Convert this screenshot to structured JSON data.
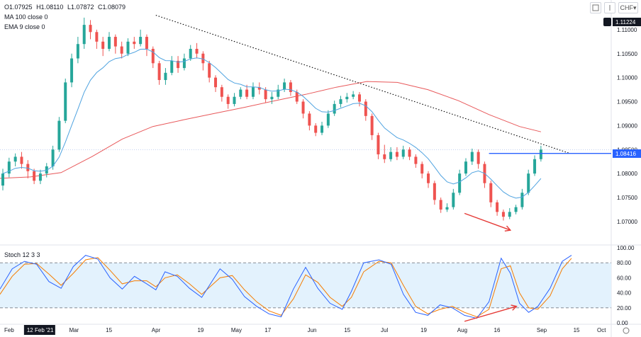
{
  "ohlc_legend": {
    "open": "O1.07925",
    "high": "H1.08110",
    "low": "L1.07872",
    "close": "C1.08079"
  },
  "indicators": {
    "ma": "MA 100 close 0",
    "ema": "EMA 9 close 0",
    "stoch": "Stoch 12 3 3"
  },
  "toolbar": {
    "currency": "CHF▾",
    "icon_a": "eye-icon",
    "icon_b": "lock-icon"
  },
  "colors": {
    "up": "#26a69a",
    "down": "#ef5350",
    "ma": "#e8585a",
    "ema": "#4fa3e0",
    "trend": "#000000",
    "hline": "#2962ff",
    "stoch_k": "#2962ff",
    "stoch_d": "#f57c00",
    "band": "#e3f2fd",
    "arrow": "#e53935",
    "price_tag": "#2962ff",
    "top_tag": "#131722"
  },
  "chart_data": {
    "type": "candlestick",
    "y_ticks": [
      "1.11000",
      "1.10500",
      "1.10000",
      "1.09500",
      "1.09000",
      "1.08500",
      "1.08000",
      "1.07500",
      "1.07000"
    ],
    "ylim": [
      1.066,
      1.115
    ],
    "x_ticks": [
      "Feb",
      "12 Feb '21",
      "Mar",
      "15",
      "Apr",
      "19",
      "May",
      "17",
      "Jun",
      "15",
      "Jul",
      "19",
      "Aug",
      "16",
      "Sep",
      "15",
      "Oct"
    ],
    "x_tick_fracs": [
      0,
      0.03,
      0.12,
      0.18,
      0.255,
      0.33,
      0.385,
      0.44,
      0.51,
      0.57,
      0.63,
      0.695,
      0.755,
      0.815,
      0.885,
      0.945,
      1.0
    ],
    "highlighted_x_tick": "12 Feb '21",
    "price_labels": {
      "current": "1.08416",
      "top": "1.11224",
      "faint": "1.08500"
    },
    "current_price": 1.08416,
    "top_price": 1.11224,
    "horizontal_line": {
      "start_frac": 0.8,
      "value": 1.0842
    },
    "trendline": {
      "start": [
        0.255,
        1.113
      ],
      "end": [
        0.93,
        1.0843
      ]
    },
    "ma100": [
      [
        0,
        1.079
      ],
      [
        0.05,
        1.0793
      ],
      [
        0.1,
        1.0802
      ],
      [
        0.15,
        1.0835
      ],
      [
        0.2,
        1.0872
      ],
      [
        0.25,
        1.0898
      ],
      [
        0.3,
        1.0912
      ],
      [
        0.35,
        1.0925
      ],
      [
        0.4,
        1.0938
      ],
      [
        0.45,
        1.0952
      ],
      [
        0.5,
        1.0965
      ],
      [
        0.55,
        1.098
      ],
      [
        0.6,
        1.0992
      ],
      [
        0.65,
        1.099
      ],
      [
        0.7,
        1.0975
      ],
      [
        0.75,
        1.0952
      ],
      [
        0.8,
        1.0923
      ],
      [
        0.85,
        1.0898
      ],
      [
        0.885,
        1.0887
      ]
    ],
    "candles": [
      [
        1.0775,
        1.08,
        1.0765,
        1.081
      ],
      [
        1.08,
        1.0825,
        1.0792,
        1.0833
      ],
      [
        1.0825,
        1.0835,
        1.0815,
        1.0842
      ],
      [
        1.0835,
        1.082,
        1.081,
        1.0845
      ],
      [
        1.082,
        1.0805,
        1.079,
        1.0828
      ],
      [
        1.0805,
        1.0785,
        1.0778,
        1.081
      ],
      [
        1.0785,
        1.08,
        1.0778,
        1.0808
      ],
      [
        1.08,
        1.0815,
        1.0792,
        1.0822
      ],
      [
        1.0815,
        1.085,
        1.0808,
        1.0858
      ],
      [
        1.085,
        1.091,
        1.0845,
        1.0918
      ],
      [
        1.091,
        1.099,
        1.0905,
        1.0998
      ],
      [
        1.099,
        1.104,
        1.098,
        1.105
      ],
      [
        1.104,
        1.107,
        1.103,
        1.1085
      ],
      [
        1.107,
        1.111,
        1.106,
        1.1125
      ],
      [
        1.111,
        1.1095,
        1.108,
        1.112
      ],
      [
        1.1095,
        1.1075,
        1.106,
        1.11
      ],
      [
        1.1075,
        1.106,
        1.1045,
        1.1085
      ],
      [
        1.106,
        1.1085,
        1.1055,
        1.1095
      ],
      [
        1.1085,
        1.1065,
        1.105,
        1.109
      ],
      [
        1.1065,
        1.105,
        1.104,
        1.1075
      ],
      [
        1.105,
        1.1075,
        1.1045,
        1.1082
      ],
      [
        1.1075,
        1.107,
        1.106,
        1.1085
      ],
      [
        1.107,
        1.1085,
        1.1065,
        1.11
      ],
      [
        1.1085,
        1.106,
        1.1045,
        1.109
      ],
      [
        1.106,
        1.103,
        1.102,
        1.1065
      ],
      [
        1.103,
        1.0995,
        1.0985,
        1.1035
      ],
      [
        1.0995,
        1.101,
        1.0985,
        1.102
      ],
      [
        1.101,
        1.1035,
        1.1005,
        1.1045
      ],
      [
        1.1035,
        1.102,
        1.101,
        1.1045
      ],
      [
        1.102,
        1.104,
        1.1015,
        1.105
      ],
      [
        1.104,
        1.106,
        1.1035,
        1.1068
      ],
      [
        1.106,
        1.105,
        1.104,
        1.1072
      ],
      [
        1.105,
        1.103,
        1.1015,
        1.1055
      ],
      [
        1.103,
        1.1,
        1.099,
        1.1035
      ],
      [
        1.1,
        1.098,
        1.097,
        1.1005
      ],
      [
        1.098,
        1.096,
        1.095,
        1.0985
      ],
      [
        1.096,
        1.0945,
        1.0935,
        1.0965
      ],
      [
        1.0945,
        1.096,
        1.094,
        1.0968
      ],
      [
        1.096,
        1.0975,
        1.0955,
        1.098
      ],
      [
        1.0975,
        1.096,
        1.0955,
        1.0985
      ],
      [
        1.096,
        1.098,
        1.0955,
        1.099
      ],
      [
        1.098,
        1.0975,
        1.0965,
        1.099
      ],
      [
        1.0975,
        1.0955,
        1.0948,
        1.098
      ],
      [
        1.0955,
        1.096,
        1.0945,
        1.097
      ],
      [
        1.096,
        1.0975,
        1.0955,
        1.0985
      ],
      [
        1.0975,
        1.099,
        1.097,
        1.0998
      ],
      [
        1.099,
        1.097,
        1.0962,
        1.0995
      ],
      [
        1.097,
        1.095,
        1.0945,
        1.0975
      ],
      [
        1.095,
        1.0925,
        1.0915,
        1.0955
      ],
      [
        1.0925,
        1.09,
        1.089,
        1.093
      ],
      [
        1.09,
        1.0885,
        1.0878,
        1.0905
      ],
      [
        1.0885,
        1.09,
        1.088,
        1.0908
      ],
      [
        1.09,
        1.0925,
        1.0895,
        1.0932
      ],
      [
        1.0925,
        1.0945,
        1.092,
        1.0952
      ],
      [
        1.0945,
        1.0955,
        1.0938,
        1.0962
      ],
      [
        1.0955,
        1.096,
        1.0948,
        1.0968
      ],
      [
        1.096,
        1.0965,
        1.0955,
        1.0972
      ],
      [
        1.0965,
        1.095,
        1.094,
        1.097
      ],
      [
        1.095,
        1.092,
        1.091,
        1.0955
      ],
      [
        1.092,
        1.088,
        1.087,
        1.0925
      ],
      [
        1.088,
        1.084,
        1.083,
        1.0885
      ],
      [
        1.084,
        1.083,
        1.0822,
        1.086
      ],
      [
        1.083,
        1.0845,
        1.0825,
        1.0855
      ],
      [
        1.0845,
        1.0835,
        1.0828,
        1.0855
      ],
      [
        1.0835,
        1.085,
        1.083,
        1.0858
      ],
      [
        1.085,
        1.0835,
        1.0828,
        1.0855
      ],
      [
        1.0835,
        1.082,
        1.0812,
        1.084
      ],
      [
        1.082,
        1.08,
        1.079,
        1.0825
      ],
      [
        1.08,
        1.078,
        1.077,
        1.0805
      ],
      [
        1.078,
        1.0745,
        1.0735,
        1.0785
      ],
      [
        1.0745,
        1.0725,
        1.0718,
        1.075
      ],
      [
        1.0725,
        1.073,
        1.072,
        1.0738
      ],
      [
        1.073,
        1.076,
        1.0725,
        1.0768
      ],
      [
        1.076,
        1.08,
        1.0755,
        1.0808
      ],
      [
        1.08,
        1.0825,
        1.0795,
        1.0832
      ],
      [
        1.0825,
        1.0845,
        1.0818,
        1.0852
      ],
      [
        1.0845,
        1.082,
        1.081,
        1.085
      ],
      [
        1.082,
        1.078,
        1.077,
        1.0825
      ],
      [
        1.078,
        1.074,
        1.073,
        1.0785
      ],
      [
        1.074,
        1.072,
        1.0712,
        1.0745
      ],
      [
        1.072,
        1.071,
        1.0702,
        1.0725
      ],
      [
        1.071,
        1.072,
        1.0705,
        1.0728
      ],
      [
        1.072,
        1.073,
        1.0715,
        1.0735
      ],
      [
        1.073,
        1.076,
        1.0725,
        1.0768
      ],
      [
        1.076,
        1.08,
        1.0755,
        1.0808
      ],
      [
        1.08,
        1.083,
        1.0795,
        1.0838
      ],
      [
        1.083,
        1.085,
        1.0825,
        1.0858
      ]
    ],
    "stoch": {
      "yticks": [
        "100.00",
        "80.00",
        "60.00",
        "40.00",
        "20.00",
        "0.00"
      ],
      "ylim": [
        0,
        100
      ],
      "band": [
        20,
        80
      ],
      "k": [
        [
          0,
          45
        ],
        [
          0.02,
          72
        ],
        [
          0.04,
          82
        ],
        [
          0.06,
          78
        ],
        [
          0.08,
          55
        ],
        [
          0.1,
          46
        ],
        [
          0.12,
          75
        ],
        [
          0.14,
          90
        ],
        [
          0.16,
          85
        ],
        [
          0.18,
          60
        ],
        [
          0.2,
          45
        ],
        [
          0.22,
          62
        ],
        [
          0.24,
          52
        ],
        [
          0.255,
          44
        ],
        [
          0.27,
          68
        ],
        [
          0.29,
          62
        ],
        [
          0.31,
          46
        ],
        [
          0.33,
          34
        ],
        [
          0.36,
          72
        ],
        [
          0.38,
          58
        ],
        [
          0.4,
          35
        ],
        [
          0.42,
          22
        ],
        [
          0.44,
          12
        ],
        [
          0.46,
          8
        ],
        [
          0.48,
          45
        ],
        [
          0.5,
          74
        ],
        [
          0.52,
          46
        ],
        [
          0.54,
          26
        ],
        [
          0.56,
          18
        ],
        [
          0.575,
          42
        ],
        [
          0.595,
          80
        ],
        [
          0.62,
          84
        ],
        [
          0.64,
          78
        ],
        [
          0.66,
          38
        ],
        [
          0.68,
          14
        ],
        [
          0.7,
          10
        ],
        [
          0.72,
          24
        ],
        [
          0.74,
          20
        ],
        [
          0.76,
          10
        ],
        [
          0.78,
          6
        ],
        [
          0.8,
          28
        ],
        [
          0.82,
          86
        ],
        [
          0.835,
          66
        ],
        [
          0.85,
          26
        ],
        [
          0.865,
          14
        ],
        [
          0.88,
          22
        ],
        [
          0.9,
          46
        ],
        [
          0.92,
          82
        ],
        [
          0.935,
          90
        ]
      ],
      "d": [
        [
          0,
          38
        ],
        [
          0.02,
          62
        ],
        [
          0.04,
          78
        ],
        [
          0.06,
          79
        ],
        [
          0.08,
          65
        ],
        [
          0.1,
          50
        ],
        [
          0.12,
          66
        ],
        [
          0.14,
          84
        ],
        [
          0.16,
          87
        ],
        [
          0.18,
          70
        ],
        [
          0.2,
          52
        ],
        [
          0.22,
          56
        ],
        [
          0.24,
          56
        ],
        [
          0.255,
          48
        ],
        [
          0.27,
          60
        ],
        [
          0.29,
          64
        ],
        [
          0.31,
          52
        ],
        [
          0.33,
          38
        ],
        [
          0.36,
          60
        ],
        [
          0.38,
          63
        ],
        [
          0.4,
          44
        ],
        [
          0.42,
          28
        ],
        [
          0.44,
          16
        ],
        [
          0.46,
          10
        ],
        [
          0.48,
          32
        ],
        [
          0.5,
          64
        ],
        [
          0.52,
          54
        ],
        [
          0.54,
          34
        ],
        [
          0.56,
          22
        ],
        [
          0.575,
          34
        ],
        [
          0.595,
          68
        ],
        [
          0.62,
          82
        ],
        [
          0.64,
          80
        ],
        [
          0.66,
          50
        ],
        [
          0.68,
          22
        ],
        [
          0.7,
          12
        ],
        [
          0.72,
          18
        ],
        [
          0.74,
          22
        ],
        [
          0.76,
          14
        ],
        [
          0.78,
          8
        ],
        [
          0.8,
          18
        ],
        [
          0.82,
          72
        ],
        [
          0.835,
          76
        ],
        [
          0.85,
          40
        ],
        [
          0.865,
          20
        ],
        [
          0.88,
          18
        ],
        [
          0.9,
          36
        ],
        [
          0.92,
          72
        ],
        [
          0.935,
          86
        ]
      ]
    },
    "arrows": {
      "price": {
        "from": [
          0.76,
          1.0717
        ],
        "to": [
          0.835,
          1.0682
        ]
      },
      "stoch": {
        "from": [
          0.76,
          2
        ],
        "to": [
          0.845,
          22
        ]
      }
    }
  }
}
